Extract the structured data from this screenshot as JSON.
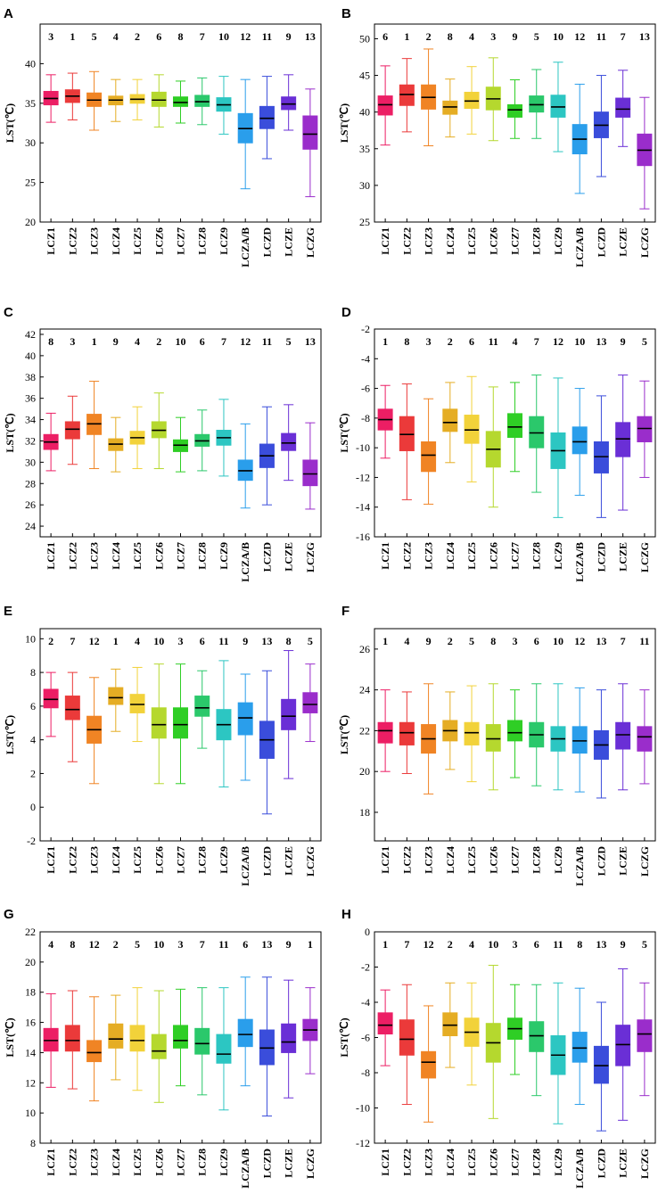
{
  "colors": [
    "#EC1E64",
    "#EB3A3A",
    "#F08424",
    "#E5AD24",
    "#F2D23A",
    "#B5D82E",
    "#2FCE25",
    "#2BC86B",
    "#2CC6C2",
    "#2A9EEB",
    "#3A4DDB",
    "#6A2FD6",
    "#9A2DCB"
  ],
  "chart_data": [
    {
      "panel": "A",
      "type": "box",
      "categories": [
        "LCZ1",
        "LCZ2",
        "LCZ3",
        "LCZ4",
        "LCZ5",
        "LCZ6",
        "LCZ7",
        "LCZ8",
        "LCZ9",
        "LCZA/B",
        "LCZD",
        "LCZE",
        "LCZG"
      ],
      "ranks": [
        "3",
        "1",
        "5",
        "4",
        "2",
        "6",
        "8",
        "7",
        "10",
        "12",
        "11",
        "9",
        "13"
      ],
      "ylabel": "LST(℃)",
      "ylim": [
        20,
        45
      ],
      "yticks": [
        20,
        25,
        30,
        35,
        40
      ],
      "boxes": [
        [
          32.6,
          34.8,
          35.6,
          36.5,
          38.6
        ],
        [
          32.9,
          35.1,
          35.9,
          36.7,
          38.8
        ],
        [
          31.6,
          34.6,
          35.4,
          36.3,
          39.0
        ],
        [
          32.7,
          34.8,
          35.4,
          35.9,
          38.0
        ],
        [
          32.9,
          35.0,
          35.5,
          36.1,
          38.0
        ],
        [
          32.0,
          34.6,
          35.4,
          36.4,
          38.6
        ],
        [
          32.5,
          34.6,
          35.1,
          35.8,
          37.8
        ],
        [
          32.3,
          34.6,
          35.2,
          36.0,
          38.2
        ],
        [
          31.1,
          34.0,
          34.8,
          35.7,
          38.4
        ],
        [
          24.2,
          30.0,
          31.8,
          33.7,
          38.0
        ],
        [
          28.0,
          31.8,
          33.1,
          34.6,
          38.4
        ],
        [
          31.6,
          34.2,
          34.9,
          35.8,
          38.6
        ],
        [
          23.2,
          29.2,
          31.1,
          33.4,
          36.8
        ]
      ]
    },
    {
      "panel": "B",
      "type": "box",
      "categories": [
        "LCZ1",
        "LCZ2",
        "LCZ3",
        "LCZ4",
        "LCZ5",
        "LCZ6",
        "LCZ7",
        "LCZ8",
        "LCZ9",
        "LCZA/B",
        "LCZD",
        "LCZE",
        "LCZG"
      ],
      "ranks": [
        "6",
        "1",
        "2",
        "8",
        "4",
        "3",
        "9",
        "5",
        "10",
        "12",
        "11",
        "7",
        "13"
      ],
      "ylabel": "LST(℃)",
      "ylim": [
        25,
        52
      ],
      "yticks": [
        25,
        30,
        35,
        40,
        45,
        50
      ],
      "boxes": [
        [
          35.5,
          39.6,
          41.0,
          42.2,
          46.3
        ],
        [
          37.3,
          40.9,
          42.4,
          43.7,
          47.3
        ],
        [
          35.4,
          40.4,
          42.0,
          43.7,
          48.6
        ],
        [
          36.6,
          39.7,
          40.7,
          41.5,
          44.5
        ],
        [
          37.0,
          40.5,
          41.5,
          42.7,
          46.2
        ],
        [
          36.1,
          40.3,
          41.8,
          43.4,
          47.4
        ],
        [
          36.4,
          39.3,
          40.3,
          41.0,
          44.4
        ],
        [
          36.4,
          40.0,
          41.0,
          42.2,
          45.8
        ],
        [
          34.6,
          39.3,
          40.7,
          42.3,
          46.8
        ],
        [
          28.9,
          34.3,
          36.3,
          38.3,
          43.8
        ],
        [
          31.2,
          36.5,
          38.2,
          40.0,
          45.0
        ],
        [
          35.3,
          39.3,
          40.4,
          41.9,
          45.7
        ],
        [
          26.8,
          32.7,
          34.8,
          37.0,
          42.0
        ]
      ]
    },
    {
      "panel": "C",
      "type": "box",
      "categories": [
        "LCZ1",
        "LCZ2",
        "LCZ3",
        "LCZ4",
        "LCZ5",
        "LCZ6",
        "LCZ7",
        "LCZ8",
        "LCZ9",
        "LCZA/B",
        "LCZD",
        "LCZE",
        "LCZG"
      ],
      "ranks": [
        "8",
        "3",
        "1",
        "9",
        "4",
        "2",
        "10",
        "6",
        "7",
        "12",
        "11",
        "5",
        "13"
      ],
      "ylabel": "LST(℃)",
      "ylim": [
        23,
        42.5
      ],
      "yticks": [
        24,
        26,
        28,
        30,
        32,
        34,
        36,
        38,
        40,
        42
      ],
      "boxes": [
        [
          29.2,
          31.2,
          31.9,
          32.6,
          34.6
        ],
        [
          29.8,
          32.2,
          33.1,
          33.8,
          36.2
        ],
        [
          29.4,
          32.6,
          33.6,
          34.5,
          37.6
        ],
        [
          29.1,
          31.1,
          31.7,
          32.2,
          34.2
        ],
        [
          29.4,
          31.7,
          32.3,
          32.9,
          35.2
        ],
        [
          29.4,
          32.3,
          33.0,
          33.8,
          36.5
        ],
        [
          29.1,
          31.0,
          31.6,
          32.1,
          34.2
        ],
        [
          29.2,
          31.5,
          32.0,
          32.6,
          34.9
        ],
        [
          28.7,
          31.6,
          32.3,
          33.0,
          35.9
        ],
        [
          25.7,
          28.3,
          29.2,
          30.2,
          33.6
        ],
        [
          26.0,
          29.5,
          30.6,
          31.7,
          35.2
        ],
        [
          28.3,
          31.1,
          31.8,
          32.7,
          35.4
        ],
        [
          25.6,
          27.8,
          28.9,
          30.2,
          33.7
        ]
      ]
    },
    {
      "panel": "D",
      "type": "box",
      "categories": [
        "LCZ1",
        "LCZ2",
        "LCZ3",
        "LCZ4",
        "LCZ5",
        "LCZ6",
        "LCZ7",
        "LCZ8",
        "LCZ9",
        "LCZA/B",
        "LCZD",
        "LCZE",
        "LCZG"
      ],
      "ranks": [
        "1",
        "8",
        "3",
        "2",
        "6",
        "11",
        "4",
        "7",
        "12",
        "10",
        "13",
        "9",
        "5"
      ],
      "ylabel": "LST(℃)",
      "ylim": [
        -16,
        -2
      ],
      "yticks": [
        -16,
        -14,
        -12,
        -10,
        -8,
        -6,
        -4,
        -2
      ],
      "boxes": [
        [
          -10.7,
          -8.8,
          -8.1,
          -7.4,
          -5.8
        ],
        [
          -13.5,
          -10.2,
          -9.1,
          -7.9,
          -5.7
        ],
        [
          -13.8,
          -11.6,
          -10.5,
          -9.6,
          -6.7
        ],
        [
          -11.0,
          -8.9,
          -8.3,
          -7.4,
          -5.6
        ],
        [
          -12.3,
          -9.7,
          -8.8,
          -7.8,
          -5.2
        ],
        [
          -14.0,
          -11.3,
          -10.1,
          -8.9,
          -5.9
        ],
        [
          -11.6,
          -9.3,
          -8.6,
          -7.7,
          -5.6
        ],
        [
          -13.0,
          -10.0,
          -9.0,
          -7.9,
          -5.1
        ],
        [
          -14.7,
          -11.4,
          -10.2,
          -9.0,
          -5.3
        ],
        [
          -13.2,
          -10.4,
          -9.6,
          -8.6,
          -6.0
        ],
        [
          -14.7,
          -11.7,
          -10.6,
          -9.6,
          -6.5
        ],
        [
          -14.2,
          -10.6,
          -9.4,
          -8.3,
          -5.1
        ],
        [
          -12.0,
          -9.6,
          -8.7,
          -7.9,
          -5.5
        ]
      ]
    },
    {
      "panel": "E",
      "type": "box",
      "categories": [
        "LCZ1",
        "LCZ2",
        "LCZ3",
        "LCZ4",
        "LCZ5",
        "LCZ6",
        "LCZ7",
        "LCZ8",
        "LCZ9",
        "LCZA/B",
        "LCZD",
        "LCZE",
        "LCZG"
      ],
      "ranks": [
        "2",
        "7",
        "12",
        "1",
        "4",
        "10",
        "3",
        "6",
        "11",
        "9",
        "13",
        "8",
        "5"
      ],
      "ylabel": "LST(℃)",
      "ylim": [
        -2,
        10.6
      ],
      "yticks": [
        -2,
        0,
        2,
        4,
        6,
        8,
        10
      ],
      "boxes": [
        [
          4.2,
          5.9,
          6.4,
          7.0,
          8.0
        ],
        [
          2.7,
          5.2,
          5.8,
          6.6,
          8.0
        ],
        [
          1.4,
          3.8,
          4.6,
          5.4,
          7.7
        ],
        [
          4.5,
          6.1,
          6.5,
          7.1,
          8.2
        ],
        [
          3.9,
          5.6,
          6.1,
          6.7,
          8.3
        ],
        [
          1.4,
          4.1,
          4.9,
          5.9,
          8.5
        ],
        [
          1.4,
          4.1,
          4.9,
          5.9,
          8.5
        ],
        [
          3.5,
          5.4,
          5.9,
          6.6,
          8.1
        ],
        [
          1.2,
          4.0,
          4.9,
          5.8,
          8.7
        ],
        [
          1.6,
          4.3,
          5.3,
          6.2,
          7.9
        ],
        [
          -0.4,
          2.9,
          4.0,
          5.1,
          8.1
        ],
        [
          1.7,
          4.6,
          5.4,
          6.4,
          9.3
        ],
        [
          3.9,
          5.6,
          6.1,
          6.8,
          8.5
        ]
      ]
    },
    {
      "panel": "F",
      "type": "box",
      "categories": [
        "LCZ1",
        "LCZ2",
        "LCZ3",
        "LCZ4",
        "LCZ5",
        "LCZ6",
        "LCZ7",
        "LCZ8",
        "LCZ9",
        "LCZA/B",
        "LCZD",
        "LCZE",
        "LCZG"
      ],
      "ranks": [
        "1",
        "4",
        "9",
        "2",
        "5",
        "8",
        "3",
        "6",
        "10",
        "12",
        "13",
        "7",
        "11"
      ],
      "ylabel": "LST(℃)",
      "ylim": [
        16.6,
        27
      ],
      "yticks": [
        18,
        20,
        22,
        24,
        26
      ],
      "boxes": [
        [
          20.0,
          21.4,
          22.0,
          22.4,
          24.0
        ],
        [
          19.9,
          21.3,
          21.9,
          22.4,
          23.9
        ],
        [
          18.9,
          20.9,
          21.6,
          22.3,
          24.3
        ],
        [
          20.1,
          21.5,
          22.0,
          22.5,
          23.9
        ],
        [
          19.5,
          21.3,
          21.9,
          22.4,
          24.2
        ],
        [
          19.1,
          21.0,
          21.6,
          22.3,
          24.3
        ],
        [
          19.7,
          21.5,
          21.9,
          22.5,
          24.0
        ],
        [
          19.3,
          21.2,
          21.8,
          22.4,
          24.3
        ],
        [
          19.1,
          21.0,
          21.6,
          22.2,
          24.3
        ],
        [
          19.0,
          20.9,
          21.5,
          22.2,
          24.1
        ],
        [
          18.7,
          20.6,
          21.3,
          22.0,
          24.0
        ],
        [
          19.1,
          21.1,
          21.8,
          22.4,
          24.3
        ],
        [
          19.4,
          21.0,
          21.7,
          22.2,
          24.0
        ]
      ]
    },
    {
      "panel": "G",
      "type": "box",
      "categories": [
        "LCZ1",
        "LCZ2",
        "LCZ3",
        "LCZ4",
        "LCZ5",
        "LCZ6",
        "LCZ7",
        "LCZ8",
        "LCZ9",
        "LCZA/B",
        "LCZD",
        "LCZE",
        "LCZG"
      ],
      "ranks": [
        "4",
        "8",
        "12",
        "2",
        "5",
        "10",
        "3",
        "7",
        "11",
        "6",
        "13",
        "9",
        "1"
      ],
      "ylabel": "LST(℃)",
      "ylim": [
        8,
        22
      ],
      "yticks": [
        8,
        10,
        12,
        14,
        16,
        18,
        20,
        22
      ],
      "boxes": [
        [
          11.7,
          14.1,
          14.8,
          15.6,
          17.9
        ],
        [
          11.6,
          14.1,
          14.8,
          15.8,
          18.1
        ],
        [
          10.8,
          13.4,
          14.0,
          14.8,
          17.7
        ],
        [
          12.2,
          14.3,
          14.9,
          15.9,
          17.8
        ],
        [
          11.5,
          14.1,
          14.8,
          15.8,
          18.3
        ],
        [
          10.7,
          13.6,
          14.1,
          15.2,
          18.1
        ],
        [
          11.8,
          14.3,
          14.8,
          15.8,
          18.2
        ],
        [
          11.2,
          13.9,
          14.6,
          15.6,
          18.3
        ],
        [
          10.2,
          13.3,
          13.9,
          15.2,
          18.3
        ],
        [
          11.8,
          14.4,
          15.2,
          16.2,
          19.0
        ],
        [
          9.8,
          13.2,
          14.3,
          15.5,
          19.0
        ],
        [
          11.0,
          14.0,
          14.7,
          15.9,
          18.8
        ],
        [
          12.6,
          14.8,
          15.5,
          16.2,
          18.3
        ]
      ]
    },
    {
      "panel": "H",
      "type": "box",
      "categories": [
        "LCZ1",
        "LCZ2",
        "LCZ3",
        "LCZ4",
        "LCZ5",
        "LCZ6",
        "LCZ7",
        "LCZ8",
        "LCZ9",
        "LCZA/B",
        "LCZD",
        "LCZE",
        "LCZG"
      ],
      "ranks": [
        "1",
        "7",
        "12",
        "2",
        "4",
        "10",
        "3",
        "6",
        "11",
        "8",
        "13",
        "9",
        "5"
      ],
      "ylabel": "LST(℃)",
      "ylim": [
        -12,
        0
      ],
      "yticks": [
        -12,
        -10,
        -8,
        -6,
        -4,
        -2,
        0
      ],
      "boxes": [
        [
          -7.6,
          -5.8,
          -5.3,
          -4.6,
          -3.3
        ],
        [
          -9.8,
          -7.0,
          -6.1,
          -5.0,
          -3.0
        ],
        [
          -10.8,
          -8.3,
          -7.4,
          -6.8,
          -4.2
        ],
        [
          -7.7,
          -5.9,
          -5.3,
          -4.6,
          -2.9
        ],
        [
          -8.7,
          -6.5,
          -5.7,
          -4.9,
          -2.9
        ],
        [
          -10.6,
          -7.4,
          -6.3,
          -5.2,
          -1.9
        ],
        [
          -8.1,
          -6.1,
          -5.5,
          -4.9,
          -3.0
        ],
        [
          -9.3,
          -6.8,
          -5.9,
          -5.1,
          -3.0
        ],
        [
          -10.9,
          -8.1,
          -7.0,
          -5.9,
          -2.9
        ],
        [
          -9.8,
          -7.4,
          -6.6,
          -5.7,
          -3.2
        ],
        [
          -11.3,
          -8.6,
          -7.6,
          -6.5,
          -4.0
        ],
        [
          -10.7,
          -7.6,
          -6.4,
          -5.3,
          -2.1
        ],
        [
          -9.3,
          -6.8,
          -5.8,
          -5.0,
          -2.9
        ]
      ]
    }
  ]
}
